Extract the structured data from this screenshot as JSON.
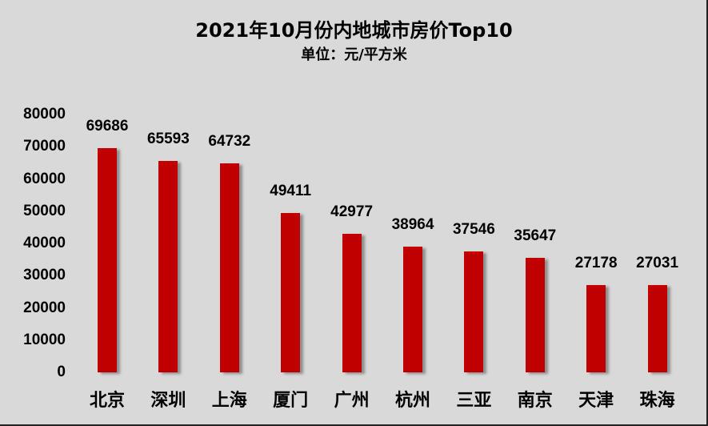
{
  "chart_data": {
    "type": "bar",
    "title": "2021年10月份内地城市房价Top10",
    "subtitle": "单位：元/平方米",
    "xlabel": "",
    "ylabel": "",
    "categories": [
      "北京",
      "深圳",
      "上海",
      "厦门",
      "广州",
      "杭州",
      "三亚",
      "南京",
      "天津",
      "珠海"
    ],
    "values": [
      69686,
      65593,
      64732,
      49411,
      42977,
      38964,
      37546,
      35647,
      27178,
      27031
    ],
    "data_labels": [
      "69686",
      "65593",
      "64732",
      "49411",
      "42977",
      "38964",
      "37546",
      "35647",
      "27178",
      "27031"
    ],
    "yticks": [
      "0",
      "10000",
      "20000",
      "30000",
      "40000",
      "50000",
      "60000",
      "70000",
      "80000"
    ],
    "ylim": [
      0,
      80000
    ],
    "grid": false,
    "legend": null,
    "colors": {
      "bar": "#c00000",
      "background": "#d9d9d9"
    }
  }
}
